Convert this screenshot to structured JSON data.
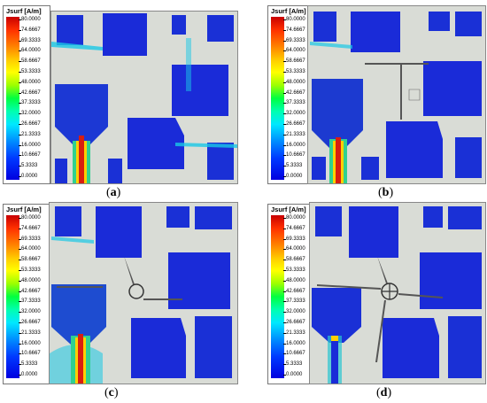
{
  "legend": {
    "title": "Jsurf [A/m]",
    "ticks": [
      "80.0000",
      "74.6667",
      "69.3333",
      "64.0000",
      "58.6667",
      "53.3333",
      "48.0000",
      "42.6667",
      "37.3333",
      "32.0000",
      "26.6667",
      "21.3333",
      "16.0000",
      "10.6667",
      "5.3333",
      "0.0000"
    ]
  },
  "panels": [
    {
      "id": "a",
      "caption_open": "(",
      "caption_letter": "a",
      "caption_close": ")"
    },
    {
      "id": "b",
      "caption_open": "(",
      "caption_letter": "b",
      "caption_close": ")"
    },
    {
      "id": "c",
      "caption_open": "(",
      "caption_letter": "c",
      "caption_close": ")"
    },
    {
      "id": "d",
      "caption_open": "(",
      "caption_letter": "d",
      "caption_close": ")"
    }
  ],
  "colors": {
    "background": "#d9dcd6",
    "low": "#1a2bd8",
    "mid": "#19c8e6",
    "high": "#d81e10"
  }
}
